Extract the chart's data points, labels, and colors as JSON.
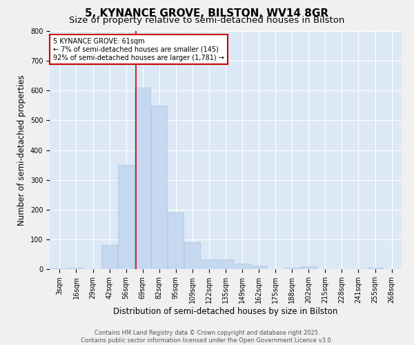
{
  "title": "5, KYNANCE GROVE, BILSTON, WV14 8GR",
  "subtitle": "Size of property relative to semi-detached houses in Bilston",
  "xlabel": "Distribution of semi-detached houses by size in Bilston",
  "ylabel": "Number of semi-detached properties",
  "categories": [
    "3sqm",
    "16sqm",
    "29sqm",
    "42sqm",
    "56sqm",
    "69sqm",
    "82sqm",
    "95sqm",
    "109sqm",
    "122sqm",
    "135sqm",
    "149sqm",
    "162sqm",
    "175sqm",
    "188sqm",
    "202sqm",
    "215sqm",
    "228sqm",
    "241sqm",
    "255sqm",
    "268sqm"
  ],
  "bar_heights": [
    2,
    5,
    0,
    82,
    350,
    610,
    550,
    190,
    90,
    32,
    32,
    18,
    12,
    0,
    4,
    10,
    0,
    0,
    0,
    5,
    0
  ],
  "bar_color": "#c5d8f0",
  "bar_edge_color": "#a8c4e0",
  "bg_color": "#dce8f5",
  "grid_color": "#ffffff",
  "vline_x": 4.6,
  "vline_color": "#cc0000",
  "annotation_text": "5 KYNANCE GROVE: 61sqm\n← 7% of semi-detached houses are smaller (145)\n92% of semi-detached houses are larger (1,781) →",
  "annotation_box_color": "#ffffff",
  "annotation_box_edge": "#cc0000",
  "ylim": [
    0,
    800
  ],
  "yticks": [
    0,
    100,
    200,
    300,
    400,
    500,
    600,
    700,
    800
  ],
  "footnote": "Contains HM Land Registry data © Crown copyright and database right 2025.\nContains public sector information licensed under the Open Government Licence v3.0.",
  "title_fontsize": 11,
  "subtitle_fontsize": 9.5,
  "axis_label_fontsize": 8.5,
  "tick_fontsize": 7,
  "annotation_fontsize": 7,
  "footnote_fontsize": 6,
  "fig_bg": "#f0f0f0"
}
